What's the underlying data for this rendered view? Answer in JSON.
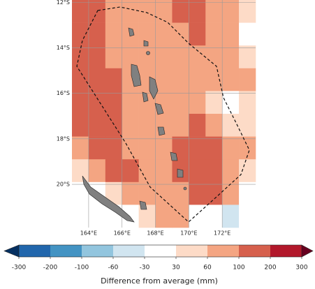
{
  "map": {
    "xlim": [
      163,
      174
    ],
    "ylim": [
      -21.9,
      -11.9
    ],
    "xticks": [
      {
        "value": 164,
        "label": "164°E"
      },
      {
        "value": 166,
        "label": "166°E"
      },
      {
        "value": 168,
        "label": "168°E"
      },
      {
        "value": 170,
        "label": "170°E"
      },
      {
        "value": 172,
        "label": "172°E"
      }
    ],
    "yticks": [
      {
        "value": -12,
        "label": "12°S"
      },
      {
        "value": -14,
        "label": "14°S"
      },
      {
        "value": -16,
        "label": "16°S"
      },
      {
        "value": -18,
        "label": "18°S"
      },
      {
        "value": -20,
        "label": "20°S"
      }
    ],
    "cells": [
      [
        150,
        150,
        80,
        80,
        80,
        80,
        150,
        150,
        80,
        80,
        45
      ],
      [
        150,
        150,
        80,
        80,
        80,
        80,
        80,
        150,
        80,
        80,
        0
      ],
      [
        150,
        150,
        80,
        80,
        80,
        80,
        80,
        80,
        80,
        80,
        45
      ],
      [
        150,
        150,
        150,
        80,
        80,
        80,
        80,
        80,
        80,
        80,
        80
      ],
      [
        150,
        150,
        150,
        80,
        80,
        80,
        80,
        80,
        45,
        0,
        45
      ],
      [
        150,
        150,
        150,
        80,
        80,
        80,
        80,
        150,
        80,
        45,
        45
      ],
      [
        80,
        150,
        150,
        80,
        80,
        80,
        150,
        150,
        150,
        80,
        80
      ],
      [
        45,
        80,
        150,
        150,
        80,
        80,
        150,
        150,
        150,
        80,
        45
      ],
      [
        0,
        0,
        45,
        80,
        80,
        80,
        80,
        150,
        150,
        80,
        0
      ],
      [
        0,
        0,
        0,
        0,
        45,
        80,
        80,
        0,
        0,
        -45,
        0
      ]
    ]
  },
  "colorbar": {
    "ticks": [
      -300,
      -200,
      -100,
      -60,
      -30,
      30,
      60,
      100,
      200,
      300
    ],
    "colors": [
      "#053061",
      "#2166ac",
      "#4393c3",
      "#92c5de",
      "#d1e5f0",
      "#ffffff",
      "#fddbc7",
      "#f4a582",
      "#d6604d",
      "#b2182b",
      "#67001f"
    ],
    "label": "Difference from average (mm)"
  }
}
